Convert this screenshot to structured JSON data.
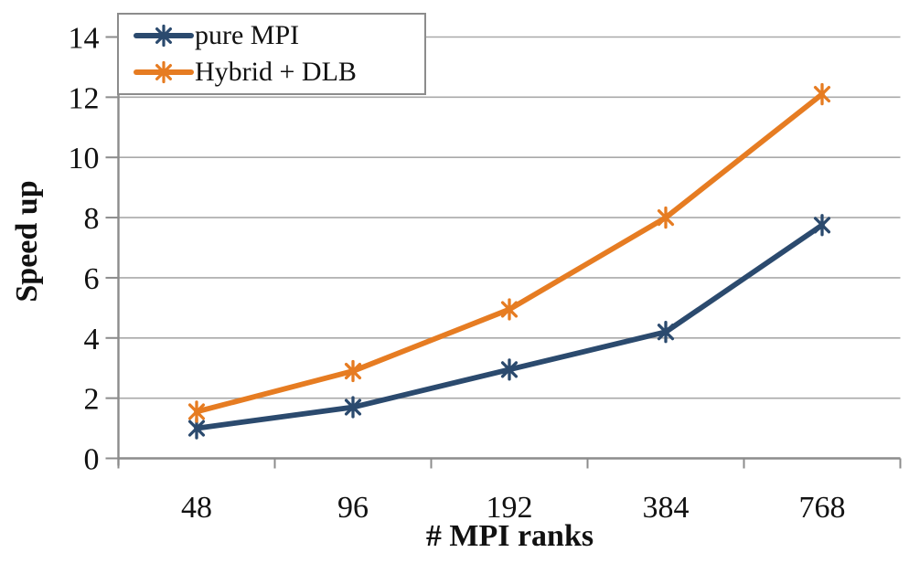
{
  "chart_data": {
    "type": "line",
    "title": "",
    "xlabel": "# MPI ranks",
    "ylabel": "Speed up",
    "categories": [
      "48",
      "96",
      "192",
      "384",
      "768"
    ],
    "series": [
      {
        "name": "pure MPI",
        "color": "#2b4a6e",
        "marker": "asterisk",
        "values": [
          1.0,
          1.7,
          2.95,
          4.2,
          7.75
        ]
      },
      {
        "name": "Hybrid + DLB",
        "color": "#e67c22",
        "marker": "asterisk",
        "values": [
          1.55,
          2.9,
          4.95,
          8.0,
          12.1
        ]
      }
    ],
    "ylim": [
      0,
      14
    ],
    "yticks": [
      0,
      2,
      4,
      6,
      8,
      10,
      12,
      14
    ],
    "grid": true,
    "legend_position": "top-left",
    "axis_color": "#8c8c8c",
    "grid_color": "#a9a9a9",
    "text_color": "#111111",
    "background": "#ffffff"
  }
}
